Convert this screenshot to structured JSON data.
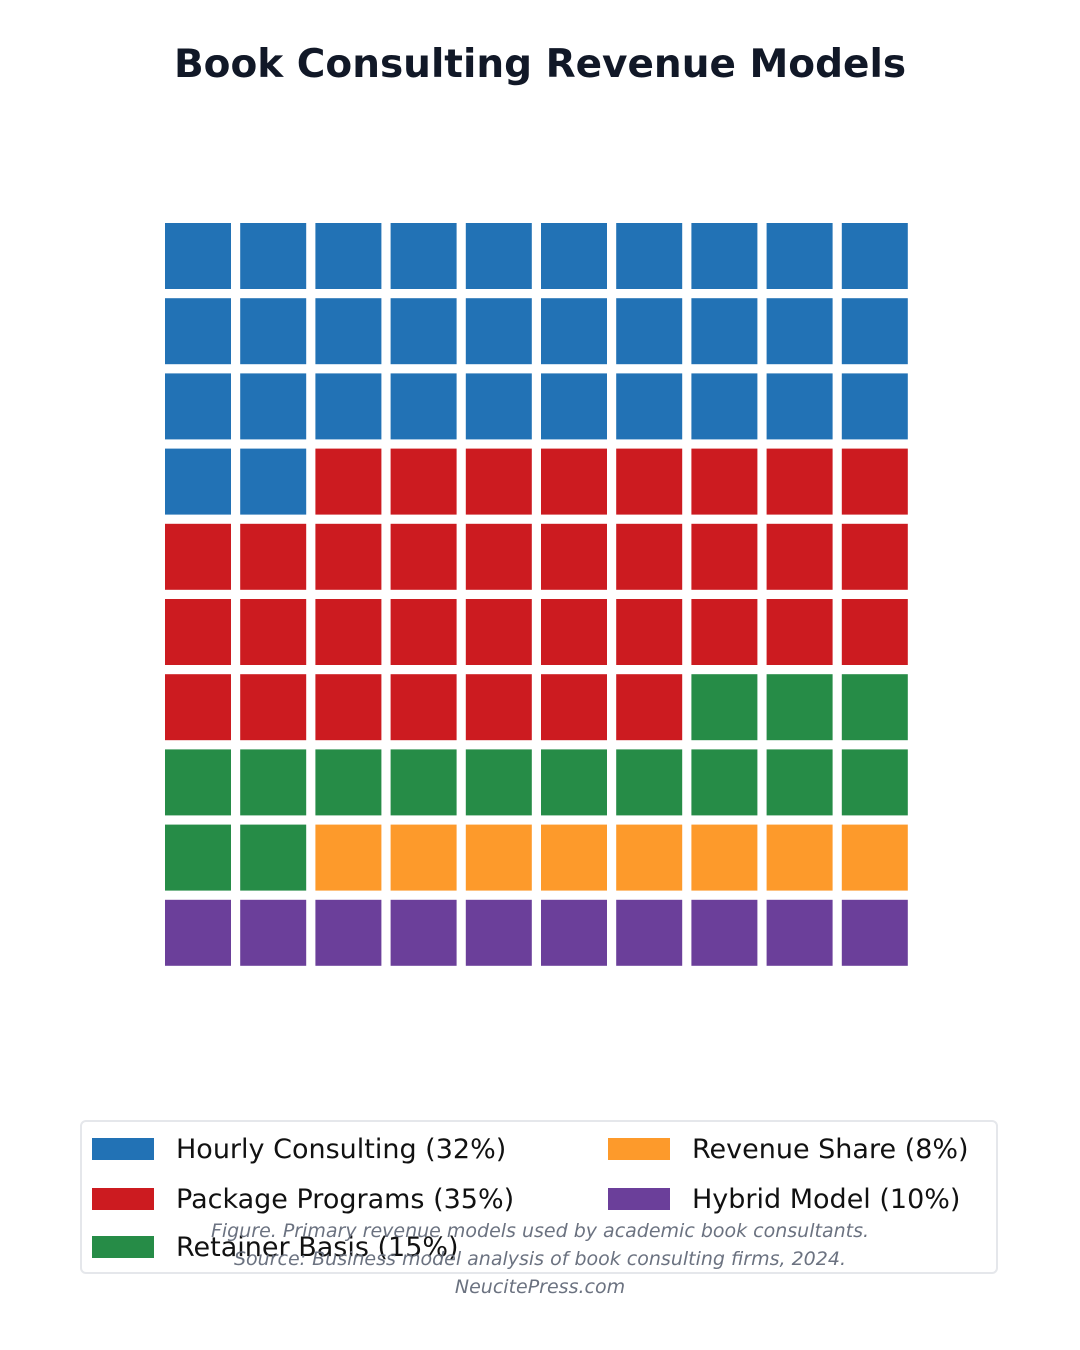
{
  "chart_data": {
    "type": "waffle",
    "title": "Book Consulting Revenue Models",
    "grid": {
      "rows": 10,
      "cols": 10
    },
    "categories": [
      {
        "name": "Hourly Consulting",
        "value": 32,
        "label": "Hourly Consulting (32%)",
        "color": "#2272b5"
      },
      {
        "name": "Package Programs",
        "value": 35,
        "label": "Package Programs (35%)",
        "color": "#cc1b20"
      },
      {
        "name": "Retainer Basis",
        "value": 15,
        "label": "Retainer Basis (15%)",
        "color": "#268c47"
      },
      {
        "name": "Revenue Share",
        "value": 8,
        "label": "Revenue Share (8%)",
        "color": "#fd9a2b"
      },
      {
        "name": "Hybrid Model",
        "value": 10,
        "label": "Hybrid Model (10%)",
        "color": "#6b3f9a"
      }
    ],
    "legend": {
      "placement": "bottom",
      "columns": 2
    }
  },
  "notes": {
    "caption": "Figure. Primary revenue models used by academic book consultants.",
    "source": "Source: Business model analysis of book consulting firms, 2024.",
    "credit": "NeucitePress.com"
  }
}
